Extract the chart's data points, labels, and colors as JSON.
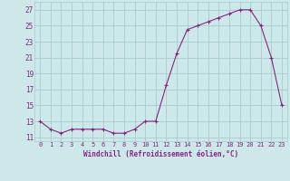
{
  "x": [
    0,
    1,
    2,
    3,
    4,
    5,
    6,
    7,
    8,
    9,
    10,
    11,
    12,
    13,
    14,
    15,
    16,
    17,
    18,
    19,
    20,
    21,
    22,
    23
  ],
  "y": [
    13,
    12,
    11.5,
    12,
    12,
    12,
    12,
    11.5,
    11.5,
    12,
    13,
    13,
    17.5,
    21.5,
    24.5,
    25,
    25.5,
    26,
    26.5,
    27,
    27,
    25,
    21,
    15
  ],
  "line_color": "#882288",
  "marker": "+",
  "marker_color": "#882288",
  "marker_size": 3,
  "marker_linewidth": 0.8,
  "linewidth": 0.8,
  "xlabel": "Windchill (Refroidissement éolien,°C)",
  "ytick_labels": [
    "11",
    "13",
    "15",
    "17",
    "19",
    "21",
    "23",
    "25",
    "27"
  ],
  "ytick_values": [
    11,
    13,
    15,
    17,
    19,
    21,
    23,
    25,
    27
  ],
  "xtick_values": [
    0,
    1,
    2,
    3,
    4,
    5,
    6,
    7,
    8,
    9,
    10,
    11,
    12,
    13,
    14,
    15,
    16,
    17,
    18,
    19,
    20,
    21,
    22,
    23
  ],
  "ylim": [
    10.5,
    28.0
  ],
  "xlim": [
    -0.5,
    23.5
  ],
  "background_color": "#cce8e8",
  "grid_color": "#aacccc",
  "tick_color": "#882288",
  "label_color": "#882288",
  "tick_fontsize": 5,
  "xlabel_fontsize": 5.5
}
